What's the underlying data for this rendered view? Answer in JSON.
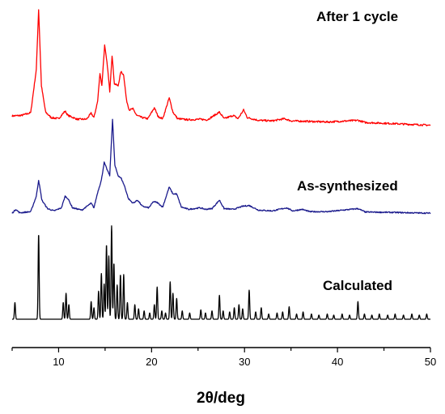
{
  "chart_data": {
    "type": "line",
    "title": "",
    "xlabel": "2θ/deg",
    "ylabel": "",
    "xlim": [
      5,
      50
    ],
    "x_ticks": [
      10,
      20,
      30,
      40,
      50
    ],
    "y_axis_visible": false,
    "grid": false,
    "legend": "none (series named by text labels beside traces)",
    "series": [
      {
        "name": "After 1 cycle",
        "color": "#ff0000",
        "baseline": 0.85,
        "noise": 0.008,
        "points": [
          [
            5.0,
            1.25
          ],
          [
            6.0,
            1.3
          ],
          [
            7.0,
            1.55
          ],
          [
            7.6,
            5.5
          ],
          [
            7.85,
            11.0
          ],
          [
            8.15,
            4.0
          ],
          [
            8.6,
            1.6
          ],
          [
            9.2,
            1.1
          ],
          [
            10.0,
            1.0
          ],
          [
            10.7,
            1.7
          ],
          [
            11.0,
            1.3
          ],
          [
            12.0,
            0.95
          ],
          [
            13.0,
            0.95
          ],
          [
            13.5,
            1.5
          ],
          [
            13.8,
            1.1
          ],
          [
            14.2,
            2.6
          ],
          [
            14.45,
            5.2
          ],
          [
            14.65,
            4.0
          ],
          [
            14.95,
            7.7
          ],
          [
            15.25,
            5.8
          ],
          [
            15.5,
            3.5
          ],
          [
            15.75,
            6.8
          ],
          [
            16.0,
            4.2
          ],
          [
            16.4,
            4.0
          ],
          [
            16.7,
            5.3
          ],
          [
            17.0,
            5.0
          ],
          [
            17.3,
            2.7
          ],
          [
            17.6,
            1.8
          ],
          [
            18.0,
            1.9
          ],
          [
            18.4,
            1.3
          ],
          [
            19.0,
            1.1
          ],
          [
            19.6,
            1.0
          ],
          [
            20.3,
            2.0
          ],
          [
            20.7,
            1.2
          ],
          [
            21.2,
            1.0
          ],
          [
            21.9,
            2.9
          ],
          [
            22.3,
            1.6
          ],
          [
            22.8,
            1.0
          ],
          [
            24.0,
            0.9
          ],
          [
            25.2,
            0.95
          ],
          [
            26.0,
            0.9
          ],
          [
            27.3,
            1.6
          ],
          [
            27.8,
            1.0
          ],
          [
            28.8,
            1.3
          ],
          [
            29.3,
            1.0
          ],
          [
            29.9,
            1.8
          ],
          [
            30.3,
            1.1
          ],
          [
            31.5,
            0.85
          ],
          [
            33.0,
            0.8
          ],
          [
            34.3,
            1.0
          ],
          [
            35.0,
            0.8
          ],
          [
            37.0,
            0.75
          ],
          [
            39.0,
            0.7
          ],
          [
            42.2,
            0.85
          ],
          [
            43.0,
            0.65
          ],
          [
            46.0,
            0.55
          ],
          [
            50.0,
            0.4
          ]
        ]
      },
      {
        "name": "As-synthesized",
        "color": "#1a1a8c",
        "baseline": 0.3,
        "noise": 0.008,
        "points": [
          [
            5.0,
            0.3
          ],
          [
            5.4,
            0.8
          ],
          [
            5.8,
            0.35
          ],
          [
            7.0,
            0.5
          ],
          [
            7.6,
            2.5
          ],
          [
            7.85,
            4.6
          ],
          [
            8.2,
            2.0
          ],
          [
            8.8,
            0.9
          ],
          [
            9.5,
            0.6
          ],
          [
            10.3,
            1.0
          ],
          [
            10.7,
            2.5
          ],
          [
            11.0,
            2.2
          ],
          [
            11.5,
            1.0
          ],
          [
            12.5,
            0.7
          ],
          [
            13.5,
            1.6
          ],
          [
            13.8,
            1.0
          ],
          [
            14.2,
            3.0
          ],
          [
            14.6,
            4.6
          ],
          [
            14.9,
            6.9
          ],
          [
            15.2,
            6.0
          ],
          [
            15.5,
            5.2
          ],
          [
            15.8,
            12.5
          ],
          [
            16.05,
            6.5
          ],
          [
            16.4,
            5.2
          ],
          [
            16.75,
            4.8
          ],
          [
            17.1,
            3.8
          ],
          [
            17.5,
            2.2
          ],
          [
            18.0,
            1.6
          ],
          [
            18.5,
            2.0
          ],
          [
            19.0,
            1.2
          ],
          [
            19.7,
            1.0
          ],
          [
            20.2,
            1.8
          ],
          [
            20.6,
            1.7
          ],
          [
            21.2,
            1.1
          ],
          [
            21.9,
            3.7
          ],
          [
            22.3,
            2.8
          ],
          [
            22.7,
            2.8
          ],
          [
            23.2,
            1.1
          ],
          [
            24.0,
            0.8
          ],
          [
            25.2,
            1.0
          ],
          [
            25.8,
            0.8
          ],
          [
            26.5,
            0.9
          ],
          [
            27.3,
            2.0
          ],
          [
            27.8,
            0.9
          ],
          [
            28.8,
            0.8
          ],
          [
            29.8,
            1.2
          ],
          [
            30.5,
            1.3
          ],
          [
            31.5,
            0.7
          ],
          [
            33.0,
            0.6
          ],
          [
            34.5,
            1.0
          ],
          [
            35.2,
            0.6
          ],
          [
            36.2,
            0.8
          ],
          [
            37.0,
            0.5
          ],
          [
            39.0,
            0.5
          ],
          [
            42.2,
            0.9
          ],
          [
            43.0,
            0.45
          ],
          [
            46.0,
            0.4
          ],
          [
            50.0,
            0.3
          ]
        ]
      },
      {
        "name": "Calculated",
        "color": "#000000",
        "baseline": 0.0,
        "noise": 0.0,
        "sticks": [
          [
            5.3,
            1.6
          ],
          [
            7.85,
            8.2
          ],
          [
            10.5,
            1.6
          ],
          [
            10.8,
            2.5
          ],
          [
            11.1,
            1.4
          ],
          [
            13.5,
            1.7
          ],
          [
            13.8,
            1.1
          ],
          [
            14.3,
            2.7
          ],
          [
            14.6,
            4.4
          ],
          [
            14.9,
            3.4
          ],
          [
            15.15,
            7.2
          ],
          [
            15.4,
            6.1
          ],
          [
            15.7,
            9.0
          ],
          [
            15.95,
            5.4
          ],
          [
            16.3,
            3.3
          ],
          [
            16.65,
            4.3
          ],
          [
            17.0,
            4.3
          ],
          [
            17.4,
            1.6
          ],
          [
            18.2,
            1.4
          ],
          [
            18.6,
            1.0
          ],
          [
            19.2,
            0.8
          ],
          [
            19.8,
            0.6
          ],
          [
            20.3,
            1.4
          ],
          [
            20.6,
            3.1
          ],
          [
            21.1,
            0.8
          ],
          [
            21.5,
            0.6
          ],
          [
            22.0,
            3.6
          ],
          [
            22.3,
            2.5
          ],
          [
            22.7,
            2.0
          ],
          [
            23.3,
            0.8
          ],
          [
            24.1,
            0.6
          ],
          [
            25.3,
            0.9
          ],
          [
            25.8,
            0.6
          ],
          [
            26.5,
            0.8
          ],
          [
            27.3,
            2.3
          ],
          [
            27.7,
            0.8
          ],
          [
            28.4,
            0.7
          ],
          [
            28.9,
            1.1
          ],
          [
            29.4,
            1.4
          ],
          [
            29.8,
            1.0
          ],
          [
            30.5,
            2.8
          ],
          [
            31.2,
            0.7
          ],
          [
            31.8,
            1.1
          ],
          [
            32.6,
            0.5
          ],
          [
            33.5,
            0.6
          ],
          [
            34.1,
            0.7
          ],
          [
            34.8,
            1.2
          ],
          [
            35.6,
            0.5
          ],
          [
            36.3,
            0.7
          ],
          [
            37.2,
            0.5
          ],
          [
            38.0,
            0.4
          ],
          [
            38.9,
            0.5
          ],
          [
            39.6,
            0.4
          ],
          [
            40.5,
            0.5
          ],
          [
            41.3,
            0.4
          ],
          [
            42.2,
            1.7
          ],
          [
            42.9,
            0.5
          ],
          [
            43.7,
            0.4
          ],
          [
            44.5,
            0.5
          ],
          [
            45.4,
            0.4
          ],
          [
            46.2,
            0.5
          ],
          [
            47.1,
            0.4
          ],
          [
            48.0,
            0.5
          ],
          [
            48.8,
            0.4
          ],
          [
            49.6,
            0.5
          ]
        ]
      }
    ]
  }
}
